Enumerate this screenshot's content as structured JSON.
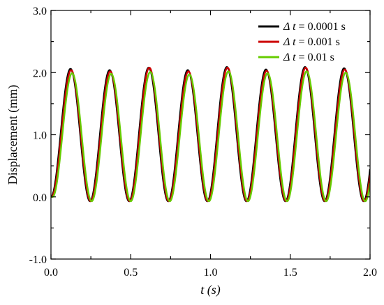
{
  "chart_data": {
    "type": "line",
    "xlabel": "t (s)",
    "ylabel": "Displacement (mm)",
    "xlim": [
      0.0,
      2.0
    ],
    "ylim": [
      -1.0,
      3.0
    ],
    "x_ticks": [
      "0.0",
      "0.5",
      "1.0",
      "1.5",
      "2.0"
    ],
    "y_ticks": [
      "-1.0",
      "0.0",
      "1.0",
      "2.0",
      "3.0"
    ],
    "grid": false,
    "legend_position": "top-right",
    "oscillation": {
      "period_s": 0.245,
      "baseline_mm": 0.0,
      "trough_mm": -0.07
    },
    "series": [
      {
        "name": "Δ t = 0.0001 s",
        "legend_prefix": "Δ t",
        "legend_suffix": " = 0.0001 s",
        "color": "#000000",
        "phase_shift_s": 0.0,
        "peaks": [
          {
            "t": 0.123,
            "y": 2.06
          },
          {
            "t": 0.368,
            "y": 2.04
          },
          {
            "t": 0.613,
            "y": 2.08
          },
          {
            "t": 0.858,
            "y": 2.04
          },
          {
            "t": 1.103,
            "y": 2.09
          },
          {
            "t": 1.348,
            "y": 2.05
          },
          {
            "t": 1.593,
            "y": 2.09
          },
          {
            "t": 1.838,
            "y": 2.07
          }
        ]
      },
      {
        "name": "Δ t = 0.001 s",
        "legend_prefix": "Δ t",
        "legend_suffix": " = 0.001 s",
        "color": "#cc0000",
        "phase_shift_s": 0.004,
        "peaks": [
          {
            "t": 0.127,
            "y": 2.04
          },
          {
            "t": 0.372,
            "y": 2.02
          },
          {
            "t": 0.617,
            "y": 2.08
          },
          {
            "t": 0.862,
            "y": 2.02
          },
          {
            "t": 1.107,
            "y": 2.08
          },
          {
            "t": 1.352,
            "y": 2.03
          },
          {
            "t": 1.597,
            "y": 2.08
          },
          {
            "t": 1.842,
            "y": 2.05
          }
        ]
      },
      {
        "name": "Δ t = 0.01 s",
        "legend_prefix": "Δ t",
        "legend_suffix": " = 0.01 s",
        "color": "#66cc00",
        "phase_shift_s": 0.01,
        "peaks": [
          {
            "t": 0.133,
            "y": 1.99
          },
          {
            "t": 0.378,
            "y": 1.98
          },
          {
            "t": 0.623,
            "y": 2.01
          },
          {
            "t": 0.868,
            "y": 1.97
          },
          {
            "t": 1.113,
            "y": 2.02
          },
          {
            "t": 1.358,
            "y": 1.99
          },
          {
            "t": 1.603,
            "y": 2.02
          },
          {
            "t": 1.848,
            "y": 2.0
          }
        ]
      }
    ]
  }
}
